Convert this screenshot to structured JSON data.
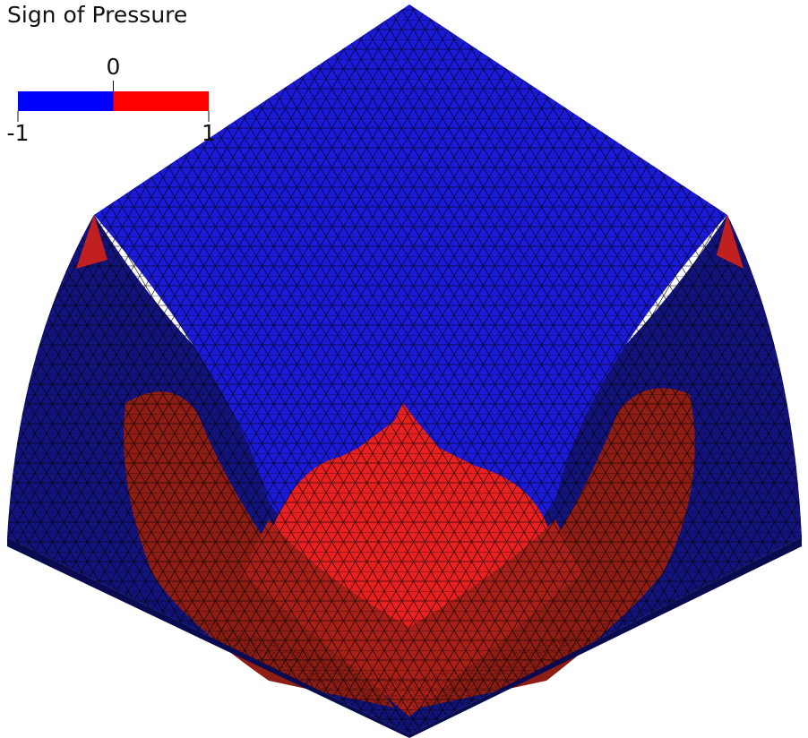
{
  "legend": {
    "title": "Sign of Pressure",
    "range": [
      -1,
      1
    ],
    "colors": [
      "#0000ff",
      "#ff0000"
    ],
    "ticks": [
      -1,
      0,
      1
    ]
  }
}
